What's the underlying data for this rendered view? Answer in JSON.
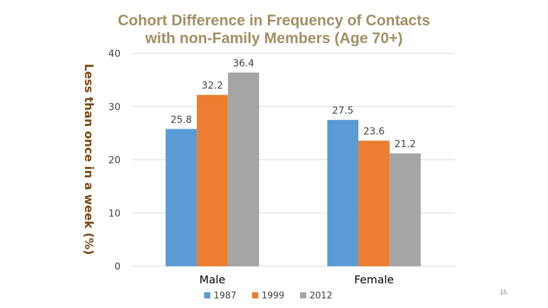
{
  "slide": {
    "title_line1": "Cohort Difference in Frequency of Contacts",
    "title_line2": "with non-Family Members (Age 70+)",
    "page_number": "15"
  },
  "colors": {
    "title": "#a38f63",
    "ylabel": "#7a4a14",
    "series": [
      "#5b9bd5",
      "#ed7d31",
      "#a5a5a5"
    ],
    "grid": "#d9d9d9",
    "text": "#404040"
  },
  "chart_data": {
    "type": "bar",
    "title": "Cohort Difference in Frequency of Contacts with non-Family Members (Age 70+)",
    "xlabel": "",
    "ylabel": "Less than once in a week (%)",
    "ylim": [
      0,
      40
    ],
    "yticks": [
      0,
      10,
      20,
      30,
      40
    ],
    "categories": [
      "Male",
      "Female"
    ],
    "series": [
      {
        "name": "1987",
        "values": [
          25.8,
          27.5
        ]
      },
      {
        "name": "1999",
        "values": [
          32.2,
          23.6
        ]
      },
      {
        "name": "2012",
        "values": [
          36.4,
          21.2
        ]
      }
    ],
    "grid": true,
    "legend_position": "bottom"
  }
}
